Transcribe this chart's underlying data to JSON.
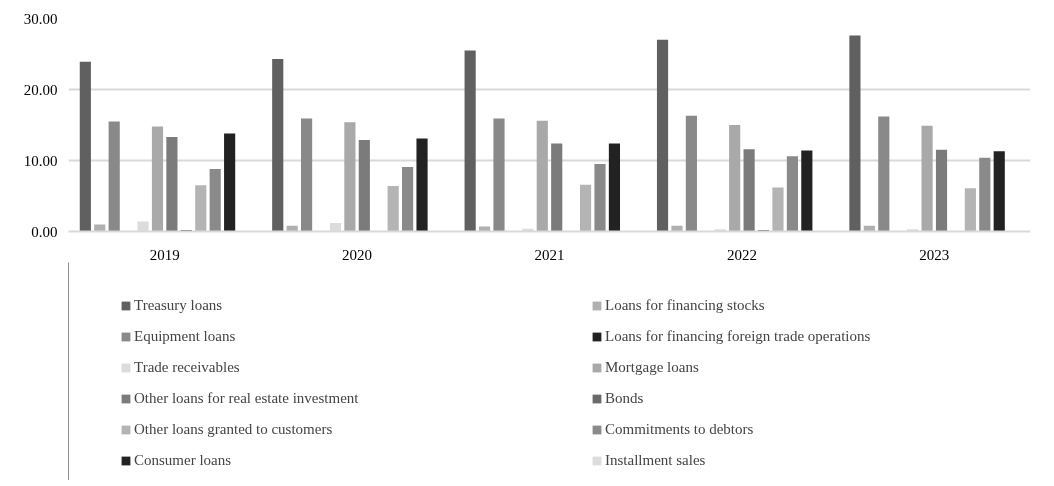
{
  "chart_data": {
    "type": "bar",
    "categories": [
      "2019",
      "2020",
      "2021",
      "2022",
      "2023"
    ],
    "ylim": [
      0,
      30
    ],
    "yticks": [
      {
        "value": 0,
        "label": "0.00"
      },
      {
        "value": 10,
        "label": "10.00"
      },
      {
        "value": 20,
        "label": "20.00"
      },
      {
        "value": 30,
        "label": "30.00"
      }
    ],
    "grid": "y",
    "legend": "bottom",
    "series": [
      {
        "name": "Treasury loans",
        "color": "#606060",
        "values": [
          23.9,
          24.3,
          25.5,
          27.0,
          27.6
        ]
      },
      {
        "name": "Loans for financing stocks",
        "color": "#b0b0b0",
        "values": [
          1.0,
          0.8,
          0.7,
          0.8,
          0.8
        ]
      },
      {
        "name": "Equipment loans",
        "color": "#898989",
        "values": [
          15.5,
          15.9,
          15.9,
          16.3,
          16.2
        ]
      },
      {
        "name": "Loans for financing foreign trade operations",
        "color": "#222222",
        "values": [
          0,
          0,
          0,
          0,
          0
        ]
      },
      {
        "name": "Trade receivables",
        "color": "#dcdcdc",
        "values": [
          1.4,
          1.2,
          0.4,
          0.3,
          0.3
        ]
      },
      {
        "name": "Mortgage loans",
        "color": "#a9a9a9",
        "values": [
          14.8,
          15.4,
          15.6,
          15.0,
          14.9
        ]
      },
      {
        "name": "Other loans for real estate investment",
        "color": "#7b7b7b",
        "values": [
          13.3,
          12.9,
          12.4,
          11.6,
          11.5
        ]
      },
      {
        "name": "Bonds",
        "color": "#6a6a6a",
        "values": [
          0.2,
          0,
          0,
          0.2,
          0
        ]
      },
      {
        "name": "Other loans granted to customers",
        "color": "#b4b4b4",
        "values": [
          6.5,
          6.4,
          6.6,
          6.2,
          6.1
        ]
      },
      {
        "name": "Commitments to debtors",
        "color": "#8a8a8a",
        "values": [
          8.8,
          9.1,
          9.5,
          10.6,
          10.4
        ]
      },
      {
        "name": "Consumer loans",
        "color": "#222222",
        "values": [
          13.8,
          13.1,
          12.4,
          11.4,
          11.3
        ]
      },
      {
        "name": "Installment sales",
        "color": "#dcdcdc",
        "values": [
          0,
          0,
          0,
          0,
          0
        ]
      }
    ]
  }
}
